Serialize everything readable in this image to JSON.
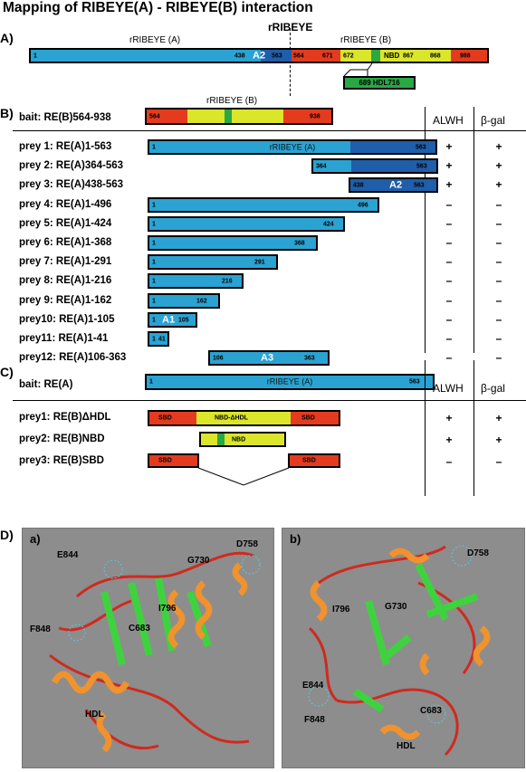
{
  "title": "Mapping of RIBEYE(A) - RIBEYE(B) interaction",
  "section_labels": {
    "a": "A)",
    "b": "B)",
    "c": "C)",
    "d": "D)"
  },
  "panel_a": {
    "heading": "rRIBEYE",
    "domain_a": "rRIBEYE (A)",
    "domain_b": "rRIBEYE (B)",
    "n1": "1",
    "n438": "438",
    "a2": "A2",
    "n563": "563",
    "n564": "564",
    "n671": "671",
    "n672": "672",
    "nbd": "NBD",
    "n867": "867",
    "n868": "868",
    "n988": "988",
    "hdl": "689 HDL716"
  },
  "panel_b": {
    "bait_label": "bait: RE(B)564-938",
    "bait_domain": "rRIBEYE (B)",
    "bait_start": "564",
    "bait_end": "938",
    "col_alwh": "ALWH",
    "col_bgal": "β-gal",
    "preys": [
      {
        "label": "prey 1: RE(A)1-563",
        "start": "1",
        "end": "563",
        "inner": "rRIBEYE (A)",
        "alwh": "+",
        "bgal": "+"
      },
      {
        "label": "prey 2: RE(A)364-563",
        "start": "364",
        "end": "563",
        "inner": "",
        "alwh": "+",
        "bgal": "+"
      },
      {
        "label": "prey 3: RE(A)438-563",
        "start": "438",
        "end": "563",
        "inner": "A2",
        "alwh": "+",
        "bgal": "+"
      },
      {
        "label": "prey 4: RE(A)1-496",
        "start": "1",
        "end": "496",
        "inner": "",
        "alwh": "–",
        "bgal": "–"
      },
      {
        "label": "prey 5: RE(A)1-424",
        "start": "1",
        "end": "424",
        "inner": "",
        "alwh": "–",
        "bgal": "–"
      },
      {
        "label": "prey 6: RE(A)1-368",
        "start": "1",
        "end": "368",
        "inner": "",
        "alwh": "–",
        "bgal": "–"
      },
      {
        "label": "prey 7: RE(A)1-291",
        "start": "1",
        "end": "291",
        "inner": "",
        "alwh": "–",
        "bgal": "–"
      },
      {
        "label": "prey 8: RE(A)1-216",
        "start": "1",
        "end": "216",
        "inner": "",
        "alwh": "–",
        "bgal": "–"
      },
      {
        "label": "prey 9: RE(A)1-162",
        "start": "1",
        "end": "162",
        "inner": "",
        "alwh": "–",
        "bgal": "–"
      },
      {
        "label": "prey10: RE(A)1-105",
        "start": "1",
        "end": "105",
        "inner": "A1",
        "alwh": "–",
        "bgal": "–"
      },
      {
        "label": "prey11: RE(A)1-41",
        "start": "1",
        "end": "41",
        "inner": "",
        "alwh": "–",
        "bgal": "–"
      },
      {
        "label": "prey12: RE(A)106-363",
        "start": "106",
        "end": "363",
        "inner": "A3",
        "alwh": "–",
        "bgal": "–"
      }
    ]
  },
  "panel_c": {
    "bait_label": "bait: RE(A)",
    "bait_start": "1",
    "bait_domain": "rRIBEYE (A)",
    "bait_end": "563",
    "col_alwh": "ALWH",
    "col_bgal": "β-gal",
    "preys": [
      {
        "label": "prey1: RE(B)ΔHDL",
        "sbd": "SBD",
        "mid": "NBD-ΔHDL",
        "alwh": "+",
        "bgal": "+"
      },
      {
        "label": "prey2: RE(B)NBD",
        "mid": "NBD",
        "alwh": "+",
        "bgal": "+"
      },
      {
        "label": "prey3: RE(B)SBD",
        "sbd": "SBD",
        "alwh": "–",
        "bgal": "–"
      }
    ]
  },
  "panel_d": {
    "a": {
      "tag": "a)",
      "labels": [
        "E844",
        "G730",
        "D758",
        "I796",
        "C683",
        "F848",
        "HDL"
      ]
    },
    "b": {
      "tag": "b)",
      "labels": [
        "D758",
        "I796",
        "G730",
        "E844",
        "F848",
        "C683",
        "HDL"
      ]
    }
  },
  "colors": {
    "blue": "#2aa3d3",
    "dark_blue": "#1f5ea9",
    "red": "#e43b1e",
    "yellow": "#dbe52a",
    "green": "#29a844",
    "panel_bg": "#8d8d8d"
  }
}
